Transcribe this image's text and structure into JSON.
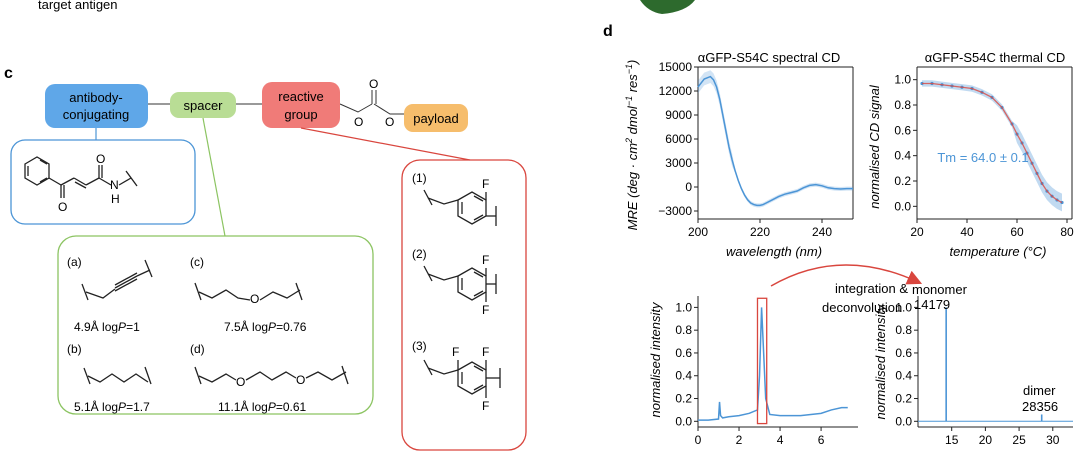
{
  "top_text": "target antigen",
  "panel_c": {
    "label": "c",
    "boxes": {
      "antibody_conjugating": [
        "antibody-",
        "conjugating"
      ],
      "spacer": "spacer",
      "reactive_group": [
        "reactive",
        "group"
      ],
      "payload": "payload"
    },
    "carbonate_atoms": {
      "o1": "O",
      "o2": "O",
      "o3": "O"
    },
    "linker_atoms": {
      "oxygen": "O",
      "nh": "H",
      "n": "N"
    },
    "spacers": [
      {
        "id": "(a)",
        "length": "4.9Å",
        "logp_prefix": "log",
        "logp_var": "P",
        "logp_value": "=1"
      },
      {
        "id": "(b)",
        "length": "5.1Å",
        "logp_prefix": "log",
        "logp_var": "P",
        "logp_value": "=1.7"
      },
      {
        "id": "(c)",
        "length": "7.5Å",
        "logp_prefix": "log",
        "logp_var": "P",
        "logp_value": "=0.76"
      },
      {
        "id": "(d)",
        "length": "11.1Å",
        "logp_prefix": "log",
        "logp_var": "P",
        "logp_value": "=0.61"
      }
    ],
    "spacer_atoms": {
      "c_o": "O",
      "d_o1": "O",
      "d_o2": "O"
    },
    "reactive_groups": [
      {
        "id": "(1)",
        "substituents": [
          "F"
        ]
      },
      {
        "id": "(2)",
        "substituents": [
          "F",
          "F"
        ]
      },
      {
        "id": "(3)",
        "substituents": [
          "F",
          "F",
          "F"
        ]
      }
    ]
  },
  "panel_d": {
    "label": "d",
    "chart_data": [
      {
        "type": "line",
        "title": "αGFP-S54C spectral CD",
        "xlabel": "wavelength (nm)",
        "ylabel_parts": [
          "MRE (deg · cm",
          "2",
          " dmol",
          "−1",
          " res",
          "−1",
          ")"
        ],
        "xlim": [
          200,
          250
        ],
        "ylim": [
          -4000,
          15000
        ],
        "xticks": [
          200,
          220,
          240
        ],
        "yticks": [
          15000,
          12000,
          9000,
          6000,
          3000,
          0,
          -3000
        ],
        "ytick_labels": [
          "15000",
          "12000",
          "9000",
          "6000",
          "3000",
          "0",
          "−3000"
        ],
        "x": [
          200,
          202,
          204,
          205,
          206,
          207,
          208,
          209,
          210,
          211,
          212,
          213,
          214,
          215,
          216,
          217,
          218,
          219,
          220,
          221,
          222,
          224,
          226,
          228,
          230,
          232,
          234,
          236,
          238,
          240,
          242,
          244,
          246,
          248,
          250
        ],
        "y": [
          12500,
          13500,
          13800,
          13400,
          12500,
          11000,
          9000,
          7000,
          5000,
          3400,
          2000,
          800,
          -200,
          -1000,
          -1600,
          -2000,
          -2200,
          -2300,
          -2300,
          -2200,
          -2000,
          -1600,
          -1200,
          -900,
          -700,
          -500,
          -100,
          200,
          300,
          150,
          -100,
          -200,
          -250,
          -200,
          -200
        ]
      },
      {
        "type": "scatter",
        "title": "αGFP-S54C thermal CD",
        "xlabel": "temperature (°C)",
        "ylabel": "normalised CD signal",
        "xlim": [
          20,
          82
        ],
        "ylim": [
          -0.1,
          1.1
        ],
        "xticks": [
          20,
          40,
          60,
          80
        ],
        "yticks": [
          1.0,
          0.8,
          0.6,
          0.4,
          0.2,
          0.0
        ],
        "ytick_labels": [
          "1.0",
          "0.8",
          "0.6",
          "0.4",
          "0.2",
          "0.0"
        ],
        "annotation": "Tm = 64.0 ± 0.1",
        "series": [
          {
            "x": [
              22,
              26,
              30,
              34,
              38,
              42,
              46,
              50,
              54,
              58,
              60,
              62,
              64,
              66,
              68,
              70,
              72,
              74,
              76,
              78
            ],
            "y": [
              0.97,
              0.97,
              0.96,
              0.95,
              0.94,
              0.93,
              0.9,
              0.86,
              0.78,
              0.65,
              0.57,
              0.5,
              0.42,
              0.34,
              0.26,
              0.18,
              0.12,
              0.08,
              0.05,
              0.03
            ]
          }
        ]
      },
      {
        "type": "line",
        "xlabel": "",
        "ylabel": "normalised intensity",
        "xlim": [
          0,
          7.8
        ],
        "ylim": [
          -0.05,
          1.1
        ],
        "xticks": [
          0,
          2,
          4,
          6
        ],
        "yticks": [
          1.0,
          0.8,
          0.6,
          0.4,
          0.2,
          0.0
        ],
        "ytick_labels": [
          "1.0",
          "0.8",
          "0.6",
          "0.4",
          "0.2",
          "0.0"
        ],
        "x": [
          0,
          0.5,
          1.0,
          1.05,
          1.1,
          1.2,
          1.5,
          2.0,
          2.5,
          2.9,
          3.0,
          3.1,
          3.2,
          3.3,
          3.5,
          4.0,
          5.0,
          6.0,
          6.5,
          7.0,
          7.3
        ],
        "y": [
          0.01,
          0.01,
          0.02,
          0.17,
          0.05,
          0.03,
          0.04,
          0.05,
          0.07,
          0.1,
          0.4,
          1.0,
          0.6,
          0.2,
          0.06,
          0.05,
          0.05,
          0.07,
          0.1,
          0.12,
          0.12
        ],
        "annotation": [
          "integration &",
          "deconvolution"
        ]
      },
      {
        "type": "line",
        "xlabel": "",
        "ylabel": "normalised intensity",
        "xlim": [
          10,
          33
        ],
        "ylim": [
          -0.05,
          1.1
        ],
        "xticks": [
          15,
          20,
          25,
          30
        ],
        "yticks": [
          1.0,
          0.8,
          0.6,
          0.4,
          0.2,
          0.0
        ],
        "ytick_labels": [
          "1.0",
          "0.8",
          "0.6",
          "0.4",
          "0.2",
          "0.0"
        ],
        "peaks": [
          {
            "x": 14.179,
            "y": 1.0,
            "name": "monomer",
            "value": "14179"
          },
          {
            "x": 28.356,
            "y": 0.06,
            "name": "dimer",
            "value": "28356"
          }
        ]
      }
    ]
  }
}
